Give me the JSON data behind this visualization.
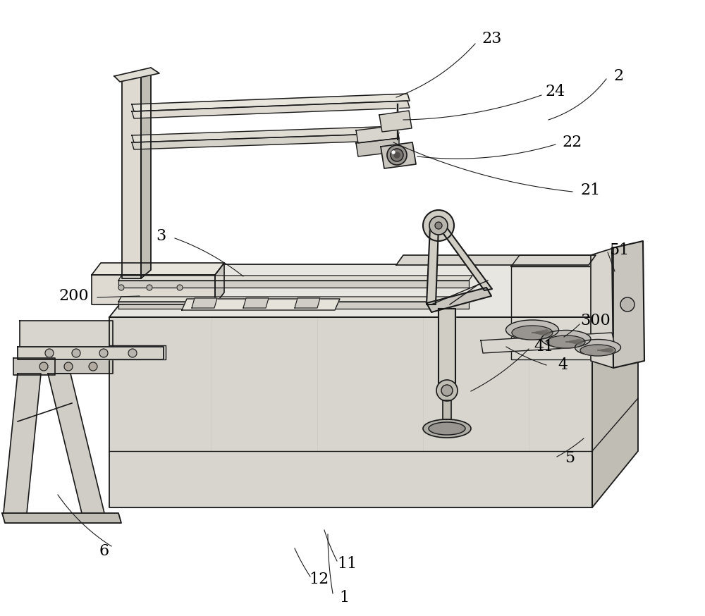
{
  "background_color": "#ffffff",
  "line_color": "#1a1a1a",
  "light_gray": "#e0e0e0",
  "mid_gray": "#888888",
  "dark_gray": "#b0b0b0",
  "figsize": [
    10.0,
    8.74
  ],
  "dpi": 100,
  "label_fontsize": 16
}
